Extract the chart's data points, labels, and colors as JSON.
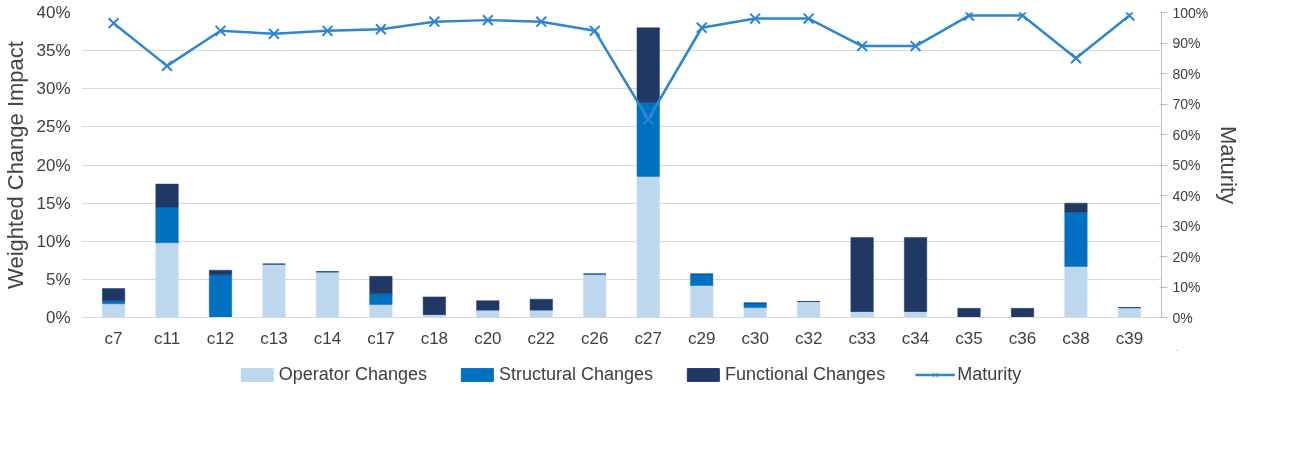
{
  "chart_data": {
    "type": "bar",
    "stacked": true,
    "ylabel": "Weighted Change Impact",
    "y2label": "Maturity",
    "categories": [
      "c7",
      "c11",
      "c12",
      "c13",
      "c14",
      "c17",
      "c18",
      "c20",
      "c22",
      "c26",
      "c27",
      "c29",
      "c30",
      "c32",
      "c33",
      "c34",
      "c35",
      "c36",
      "c38",
      "c39"
    ],
    "series": [
      {
        "name": "Operator Changes",
        "color": "#bdd7ee",
        "values": [
          1.8,
          9.8,
          0,
          7.0,
          6.0,
          1.7,
          0.4,
          1.0,
          1.0,
          5.7,
          18.5,
          4.2,
          1.3,
          2.1,
          0.8,
          0.8,
          0,
          0,
          6.7,
          1.3
        ]
      },
      {
        "name": "Structural Changes",
        "color": "#0070c0",
        "values": [
          0.4,
          4.7,
          5.6,
          0,
          0,
          1.4,
          0,
          0,
          0,
          0,
          9.7,
          1.5,
          0.6,
          0,
          0,
          0,
          0,
          0,
          7.1,
          0
        ]
      },
      {
        "name": "Functional Changes",
        "color": "#203864",
        "values": [
          1.6,
          3.0,
          0.6,
          0,
          0,
          2.3,
          2.3,
          1.2,
          1.4,
          0,
          9.8,
          0,
          0,
          0,
          9.7,
          9.7,
          1.2,
          1.2,
          1.2,
          0
        ]
      },
      {
        "name": "Maturity",
        "type": "line",
        "axis": "y2",
        "color": "#2e86d1",
        "marker": "cross",
        "values": [
          96.5,
          82.5,
          94,
          93,
          94,
          94.5,
          97,
          97.5,
          97,
          94,
          65,
          95,
          98,
          98,
          89,
          89,
          99,
          99,
          85,
          99
        ]
      }
    ],
    "ylim": [
      0,
      40
    ],
    "yticks": [
      {
        "value": 0,
        "label": "0%"
      },
      {
        "value": 5,
        "label": "5%"
      },
      {
        "value": 10,
        "label": "10%"
      },
      {
        "value": 15,
        "label": "15%"
      },
      {
        "value": 20,
        "label": "20%"
      },
      {
        "value": 25,
        "label": "25%"
      },
      {
        "value": 30,
        "label": "30%"
      },
      {
        "value": 35,
        "label": "35%"
      },
      {
        "value": 40,
        "label": "40%"
      }
    ],
    "y2lim": [
      0,
      100
    ],
    "y2ticks": [
      {
        "value": 0,
        "label": "0%"
      },
      {
        "value": 10,
        "label": "10%"
      },
      {
        "value": 20,
        "label": "20%"
      },
      {
        "value": 30,
        "label": "30%"
      },
      {
        "value": 40,
        "label": "40%"
      },
      {
        "value": 50,
        "label": "50%"
      },
      {
        "value": 60,
        "label": "60%"
      },
      {
        "value": 70,
        "label": "70%"
      },
      {
        "value": 80,
        "label": "80%"
      },
      {
        "value": 90,
        "label": "90%"
      },
      {
        "value": 100,
        "label": "100%"
      }
    ],
    "grid": "y",
    "legend": "bottom"
  }
}
